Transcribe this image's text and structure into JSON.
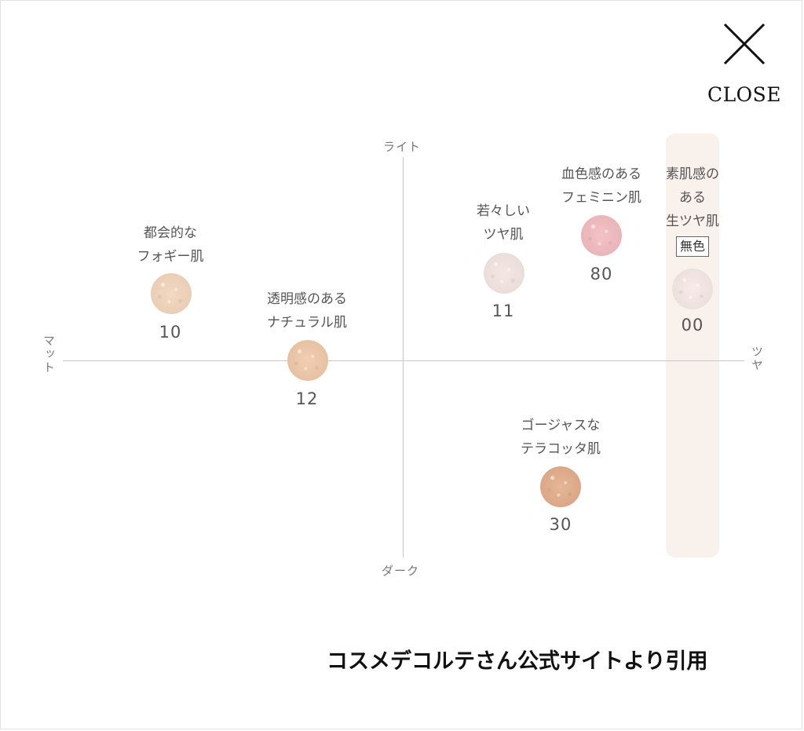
{
  "close": {
    "label": "CLOSE"
  },
  "axes": {
    "top": "ライト",
    "bottom": "ダーク",
    "left": "マット",
    "right": "ツヤ"
  },
  "items": [
    {
      "id": "10",
      "number": "10",
      "desc": [
        "都会的な",
        "フォギー肌"
      ],
      "color": "#f2d3b8"
    },
    {
      "id": "12",
      "number": "12",
      "desc": [
        "透明感のある",
        "ナチュラル肌"
      ],
      "color": "#f0c6a5"
    },
    {
      "id": "11",
      "number": "11",
      "desc": [
        "若々しい",
        "ツヤ肌"
      ],
      "color": "#f3e4e0"
    },
    {
      "id": "80",
      "number": "80",
      "desc": [
        "血色感のある",
        "フェミニン肌"
      ],
      "color": "#f1b9bd"
    },
    {
      "id": "00",
      "number": "00",
      "desc": [
        "素肌感の",
        "ある",
        "生ツヤ肌"
      ],
      "tag": "無色",
      "color": "#f6e7e4"
    },
    {
      "id": "30",
      "number": "30",
      "desc": [
        "ゴージャスな",
        "テラコッタ肌"
      ],
      "color": "#e2aa87"
    }
  ],
  "credit": "コスメデコルテさん公式サイトより引用"
}
